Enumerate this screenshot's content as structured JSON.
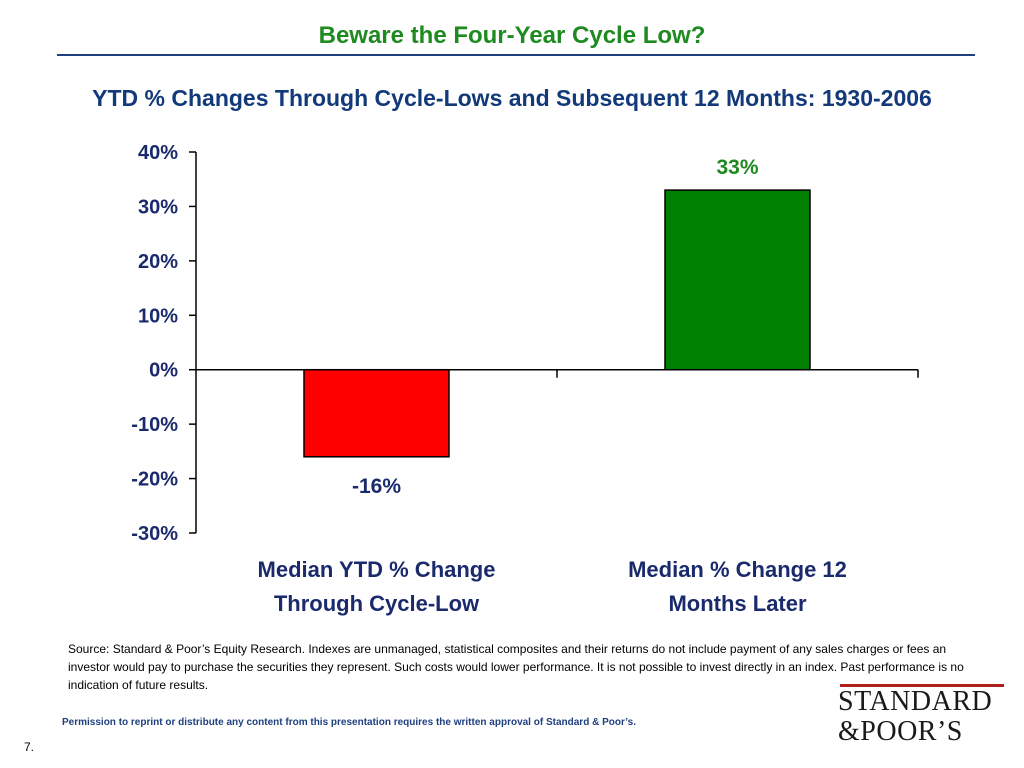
{
  "slide": {
    "title": "Beware the Four-Year Cycle Low?",
    "subtitle": "YTD % Changes Through Cycle-Lows and Subsequent 12 Months: 1930-2006",
    "source": "Source: Standard & Poor’s Equity Research. Indexes are unmanaged, statistical composites and their returns do not include payment of any sales charges or fees an investor would pay to purchase the securities they represent. Such costs would lower performance. It is not possible to invest directly in an index. Past performance is no indication of future results.",
    "permission": "Permission to reprint or distribute any content from this presentation requires the written approval of Standard & Poor’s.",
    "page_number": "7.",
    "logo_line1": "STANDARD",
    "logo_line2": "&POOR’S"
  },
  "colors": {
    "title": "#1f8a1f",
    "subtitle": "#123a7a",
    "rule": "#1f3f7f",
    "axis_text": "#1a2a6c",
    "permission": "#1f3f7f",
    "logo_rule": "#b0201a"
  },
  "chart_data": {
    "type": "bar",
    "title": "",
    "xlabel": "",
    "ylabel": "",
    "ylim": [
      -30,
      40
    ],
    "yticks": [
      40,
      30,
      20,
      10,
      0,
      -10,
      -20,
      -30
    ],
    "ytick_labels": [
      "40%",
      "30%",
      "20%",
      "10%",
      "0%",
      "-10%",
      "-20%",
      "-30%"
    ],
    "grid": false,
    "categories": [
      [
        "Median YTD % Change",
        "Through Cycle-Low"
      ],
      [
        "Median % Change 12",
        "Months Later"
      ]
    ],
    "values": [
      -16,
      33
    ],
    "value_labels": [
      "-16%",
      "33%"
    ],
    "bar_colors": [
      "#ff0000",
      "#008000"
    ],
    "label_colors": [
      "#1a2a6c",
      "#1f8a1f"
    ]
  }
}
